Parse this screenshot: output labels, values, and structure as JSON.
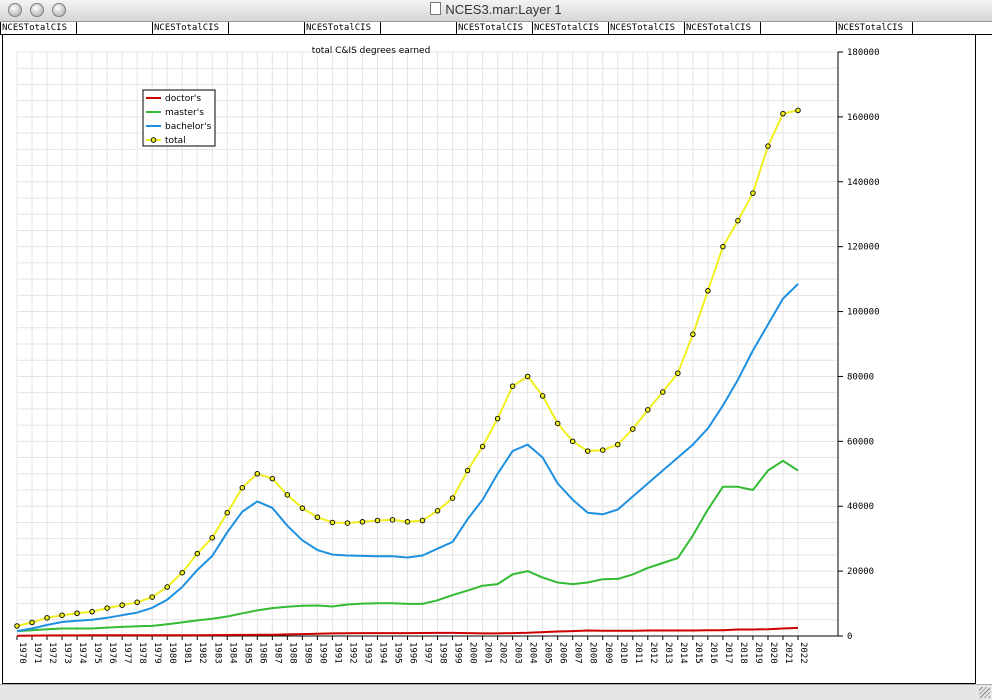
{
  "window": {
    "title": "NCES3.mar:Layer 1",
    "buttons": [
      "close",
      "minimize",
      "zoom"
    ]
  },
  "tabs": [
    {
      "label": "NCESTotalCIS"
    },
    {
      "label": "NCESTotalCIS"
    },
    {
      "label": "NCESTotalCIS"
    },
    {
      "label": "NCESTotalCIS"
    },
    {
      "label": "NCESTotalCIS"
    },
    {
      "label": "NCESTotalCIS"
    },
    {
      "label": "NCESTotalCIS"
    },
    {
      "label": "NCESTotalCIS"
    }
  ],
  "colors": {
    "doctor": "#cc0000",
    "master": "#33bb33",
    "bachelor": "#1e90e0",
    "total": "#f0f020",
    "grid": "#e4e4e4"
  },
  "chart_data": {
    "type": "line",
    "title": "total C&IS degrees earned",
    "xlabel": "",
    "ylabel": "",
    "x": [
      1970,
      1971,
      1972,
      1973,
      1974,
      1975,
      1976,
      1977,
      1978,
      1979,
      1980,
      1981,
      1982,
      1983,
      1984,
      1985,
      1986,
      1987,
      1988,
      1989,
      1990,
      1991,
      1992,
      1993,
      1994,
      1995,
      1996,
      1997,
      1998,
      1999,
      2000,
      2001,
      2002,
      2003,
      2004,
      2005,
      2006,
      2007,
      2008,
      2009,
      2010,
      2011,
      2012,
      2013,
      2014,
      2015,
      2016,
      2017,
      2018,
      2019,
      2020,
      2021,
      2022
    ],
    "xtick_labels": [
      "1970",
      "1971",
      "1972",
      "1973",
      "1974",
      "1975",
      "1976",
      "1977",
      "1978",
      "1979",
      "1980",
      "1981",
      "1982",
      "1983",
      "1984",
      "1985",
      "1986",
      "1987",
      "1988",
      "1989",
      "1990",
      "1991",
      "1992",
      "1993",
      "1994",
      "1995",
      "1996",
      "1997",
      "1998",
      "1999",
      "2000",
      "2001",
      "2002",
      "2003",
      "2004",
      "2005",
      "2006",
      "2007",
      "2008",
      "2009",
      "2010",
      "2011",
      "2012",
      "2013",
      "2014",
      "2015",
      "2016",
      "2017",
      "2018",
      "2019",
      "2020",
      "2021",
      "2022"
    ],
    "ylim": [
      0,
      180000
    ],
    "yticks": [
      0,
      20000,
      40000,
      60000,
      80000,
      100000,
      120000,
      140000,
      160000,
      180000
    ],
    "y_axis_side": "right",
    "grid": true,
    "legend_position": "top-left",
    "series": [
      {
        "name": "doctor's",
        "color": "#cc0000",
        "markers": false,
        "values": [
          100,
          130,
          160,
          180,
          200,
          210,
          220,
          240,
          220,
          230,
          230,
          240,
          250,
          280,
          300,
          350,
          380,
          400,
          500,
          600,
          700,
          800,
          850,
          880,
          900,
          900,
          900,
          920,
          950,
          950,
          900,
          800,
          800,
          900,
          1000,
          1200,
          1400,
          1500,
          1700,
          1600,
          1600,
          1600,
          1700,
          1700,
          1700,
          1700,
          1800,
          1800,
          2000,
          2000,
          2100,
          2300,
          2500
        ]
      },
      {
        "name": "master's",
        "color": "#33bb33",
        "markers": false,
        "values": [
          1500,
          1800,
          2100,
          2300,
          2300,
          2300,
          2600,
          2800,
          3000,
          3100,
          3600,
          4200,
          4800,
          5300,
          6000,
          7000,
          7900,
          8600,
          9000,
          9300,
          9400,
          9100,
          9700,
          10000,
          10100,
          10100,
          9900,
          9900,
          11000,
          12600,
          14000,
          15500,
          16000,
          19000,
          20000,
          18000,
          16500,
          16000,
          16500,
          17500,
          17600,
          19000,
          21000,
          22500,
          24000,
          31000,
          39000,
          46000,
          46000,
          45000,
          51000,
          54000,
          51000
        ]
      },
      {
        "name": "bachelor's",
        "color": "#1e90e0",
        "markers": false,
        "values": [
          1500,
          2300,
          3400,
          4300,
          4700,
          5000,
          5600,
          6400,
          7200,
          8700,
          11200,
          15100,
          20300,
          24700,
          32000,
          38300,
          41500,
          39500,
          34000,
          29500,
          26500,
          25100,
          24800,
          24700,
          24600,
          24600,
          24200,
          24800,
          26900,
          29000,
          36000,
          42000,
          50000,
          57000,
          59000,
          55000,
          47000,
          42000,
          38000,
          37500,
          39000,
          43000,
          47000,
          51000,
          55000,
          59000,
          64000,
          71000,
          79000,
          88000,
          96000,
          104000,
          108500
        ]
      },
      {
        "name": "total",
        "color": "#f0f020",
        "markers": true,
        "values": [
          3100,
          4200,
          5600,
          6400,
          7000,
          7500,
          8600,
          9500,
          10400,
          12000,
          15100,
          19500,
          25400,
          30300,
          38000,
          45700,
          50000,
          48500,
          43500,
          39400,
          36600,
          35000,
          34800,
          35200,
          35600,
          35800,
          35200,
          35600,
          38600,
          42500,
          51000,
          58400,
          67000,
          77000,
          80000,
          74000,
          65500,
          60000,
          57000,
          57300,
          59000,
          63800,
          69700,
          75200,
          81000,
          93000,
          106400,
          120000,
          128000,
          136500,
          151000,
          161000,
          162000
        ]
      }
    ]
  }
}
